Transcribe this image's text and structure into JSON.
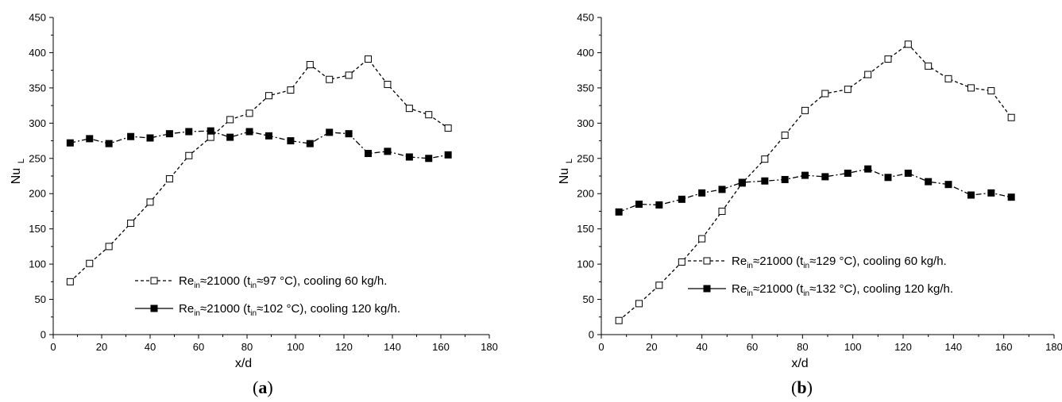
{
  "chart_data": [
    {
      "type": "line",
      "panel_label": "a",
      "xlabel": "x/d",
      "ylabel": "Nu",
      "ylabel_sub": "L",
      "xlim": [
        0,
        180
      ],
      "ylim": [
        0,
        450
      ],
      "xticks": [
        0,
        20,
        40,
        60,
        80,
        100,
        120,
        140,
        160,
        180
      ],
      "yticks": [
        0,
        50,
        100,
        150,
        200,
        250,
        300,
        350,
        400,
        450
      ],
      "legend_position": "bottom-center",
      "series": [
        {
          "name": "Re≈21000 (t≈97 °C), cooling 60 kg/h.",
          "legend": {
            "a": "Re",
            "a_sub": "in",
            "b": "≈21000 (t",
            "b_sub": "in",
            "c": "≈97 °C), cooling 60 kg/h."
          },
          "marker": "open-square",
          "line": "dashed",
          "x": [
            7,
            15,
            23,
            32,
            40,
            48,
            56,
            65,
            73,
            81,
            89,
            98,
            106,
            114,
            122,
            130,
            138,
            147,
            155,
            163
          ],
          "y": [
            75,
            101,
            125,
            158,
            188,
            221,
            254,
            280,
            305,
            314,
            339,
            347,
            383,
            362,
            368,
            391,
            355,
            321,
            312,
            293
          ]
        },
        {
          "name": "Re≈21000 (t≈102 °C), cooling 120 kg/h.",
          "legend": {
            "a": "Re",
            "a_sub": "in",
            "b": "≈21000 (t",
            "b_sub": "in",
            "c": "≈102 °C), cooling 120 kg/h."
          },
          "marker": "filled-square",
          "line": "dash-dot",
          "x": [
            7,
            15,
            23,
            32,
            40,
            48,
            56,
            65,
            73,
            81,
            89,
            98,
            106,
            114,
            122,
            130,
            138,
            147,
            155,
            163
          ],
          "y": [
            272,
            278,
            271,
            281,
            279,
            285,
            288,
            289,
            280,
            288,
            282,
            275,
            271,
            287,
            285,
            257,
            260,
            252,
            250,
            255
          ]
        }
      ]
    },
    {
      "type": "line",
      "panel_label": "b",
      "xlabel": "x/d",
      "ylabel": "Nu",
      "ylabel_sub": "L",
      "xlim": [
        0,
        180
      ],
      "ylim": [
        0,
        450
      ],
      "xticks": [
        0,
        20,
        40,
        60,
        80,
        100,
        120,
        140,
        160,
        180
      ],
      "yticks": [
        0,
        50,
        100,
        150,
        200,
        250,
        300,
        350,
        400,
        450
      ],
      "legend_position": "bottom-center",
      "series": [
        {
          "name": "Re≈21000 (t≈129 °C), cooling 60 kg/h.",
          "legend": {
            "a": "Re",
            "a_sub": "in",
            "b": "≈21000 (t",
            "b_sub": "in",
            "c": "≈129 °C), cooling 60 kg/h."
          },
          "marker": "open-square",
          "line": "dashed",
          "x": [
            7,
            15,
            23,
            32,
            40,
            48,
            56,
            65,
            73,
            81,
            89,
            98,
            106,
            114,
            122,
            130,
            138,
            147,
            155,
            163
          ],
          "y": [
            20,
            44,
            70,
            103,
            136,
            175,
            215,
            249,
            283,
            318,
            342,
            348,
            369,
            391,
            412,
            381,
            363,
            350,
            346,
            308
          ]
        },
        {
          "name": "Re≈21000 (t≈132 °C), cooling 120 kg/h.",
          "legend": {
            "a": "Re",
            "a_sub": "in",
            "b": "≈21000 (t",
            "b_sub": "in",
            "c": "≈132 °C), cooling 120 kg/h."
          },
          "marker": "filled-square",
          "line": "dash-dot",
          "x": [
            7,
            15,
            23,
            32,
            40,
            48,
            56,
            65,
            73,
            81,
            89,
            98,
            106,
            114,
            122,
            130,
            138,
            147,
            155,
            163
          ],
          "y": [
            174,
            185,
            184,
            192,
            201,
            206,
            216,
            218,
            220,
            226,
            224,
            229,
            235,
            223,
            229,
            217,
            213,
            198,
            201,
            195
          ]
        }
      ]
    }
  ]
}
